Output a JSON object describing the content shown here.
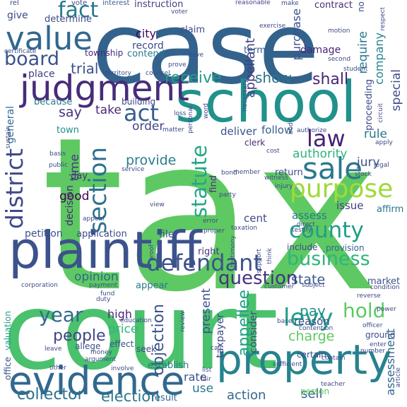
{
  "cloud": {
    "words": [
      {
        "text": "tax",
        "color": "#5ec962"
      },
      {
        "text": "court",
        "color": "#4ac16d"
      },
      {
        "text": "case",
        "color": "#33638d"
      },
      {
        "text": "school",
        "color": "#21918c"
      },
      {
        "text": "plaintiff",
        "color": "#3b528b"
      },
      {
        "text": "evidence",
        "color": "#31688e"
      },
      {
        "text": "property",
        "color": "#26828e"
      },
      {
        "text": "judgment",
        "color": "#472c7a"
      },
      {
        "text": "value",
        "color": "#31688e"
      },
      {
        "text": "sale",
        "color": "#2a788e"
      },
      {
        "text": "purpose",
        "color": "#a0da39"
      },
      {
        "text": "district",
        "color": "#3e4a89"
      },
      {
        "text": "county",
        "color": "#1f9e89"
      },
      {
        "text": "section",
        "color": "#2c728e"
      },
      {
        "text": "defendant",
        "color": "#3b528b"
      },
      {
        "text": "statute",
        "color": "#22a884"
      },
      {
        "text": "levy",
        "color": "#1f9e89"
      },
      {
        "text": "law",
        "color": "#482173"
      },
      {
        "text": "act",
        "color": "#355f8d"
      },
      {
        "text": "business",
        "color": "#2fb47c"
      },
      {
        "text": "fact",
        "color": "#2a788e"
      },
      {
        "text": "board",
        "color": "#3b528b"
      },
      {
        "text": "hold",
        "color": "#5ec962"
      },
      {
        "text": "year",
        "color": "#31688e"
      },
      {
        "text": "question",
        "color": "#46327e"
      },
      {
        "text": "people",
        "color": "#414487"
      },
      {
        "text": "appellee",
        "color": "#1fa088"
      },
      {
        "text": "objection",
        "color": "#3b528b"
      },
      {
        "text": "collector",
        "color": "#2c728e"
      },
      {
        "text": "election",
        "color": "#2a788e"
      },
      {
        "text": "action",
        "color": "#31688e"
      },
      {
        "text": "sell",
        "color": "#355f8d"
      },
      {
        "text": "pay",
        "color": "#21918c"
      },
      {
        "text": "state",
        "color": "#38588c"
      },
      {
        "text": "receive",
        "color": "#1f9e89"
      },
      {
        "text": "appellant",
        "color": "#433e85"
      },
      {
        "text": "show",
        "color": "#2c728e"
      },
      {
        "text": "shall",
        "color": "#482475"
      },
      {
        "text": "require",
        "color": "#2a788e"
      },
      {
        "text": "purchase",
        "color": "#3b528b"
      },
      {
        "text": "company",
        "color": "#26828e"
      },
      {
        "text": "special",
        "color": "#3e4a89"
      },
      {
        "text": "trial",
        "color": "#3b528b"
      },
      {
        "text": "city",
        "color": "#440154"
      },
      {
        "text": "record",
        "color": "#3e4a89"
      },
      {
        "text": "provide",
        "color": "#287d8e"
      },
      {
        "text": "time",
        "color": "#443983"
      },
      {
        "text": "order",
        "color": "#414487"
      },
      {
        "text": "say",
        "color": "#46327e"
      },
      {
        "text": "take",
        "color": "#482878"
      },
      {
        "text": "good",
        "color": "#440154"
      },
      {
        "text": "present",
        "color": "#3b528b"
      },
      {
        "text": "opinion",
        "color": "#31688e"
      },
      {
        "text": "charge",
        "color": "#5ec962"
      },
      {
        "text": "reason",
        "color": "#3e4a89"
      },
      {
        "text": "price",
        "color": "#2fb47c"
      },
      {
        "text": "high",
        "color": "#482878"
      },
      {
        "text": "rate",
        "color": "#3b528b"
      },
      {
        "text": "use",
        "color": "#2a788e"
      },
      {
        "text": "jury",
        "color": "#3b528b"
      },
      {
        "text": "rule",
        "color": "#2a788e"
      },
      {
        "text": "authority",
        "color": "#2fb47c"
      },
      {
        "text": "follow",
        "color": "#355f8d"
      },
      {
        "text": "deliver",
        "color": "#3b528b"
      },
      {
        "text": "find",
        "color": "#46327e"
      },
      {
        "text": "cent",
        "color": "#3e4a89"
      },
      {
        "text": "issue",
        "color": "#433e85"
      },
      {
        "text": "assess",
        "color": "#2a788e"
      },
      {
        "text": "taxpayer",
        "color": "#3e4a89"
      },
      {
        "text": "consider",
        "color": "#3e4a89"
      },
      {
        "text": "assessment",
        "color": "#31688e"
      },
      {
        "text": "general",
        "color": "#31688e"
      },
      {
        "text": "give",
        "color": "#3e4a89"
      },
      {
        "text": "damage",
        "color": "#482475"
      },
      {
        "text": "term",
        "color": "#355f8d"
      },
      {
        "text": "claim",
        "color": "#3e4a89"
      },
      {
        "text": "contend",
        "color": "#2a788e"
      },
      {
        "text": "place",
        "color": "#433e85"
      },
      {
        "text": "decision",
        "color": "#482475"
      },
      {
        "text": "petition",
        "color": "#3b528b"
      },
      {
        "text": "application",
        "color": "#3e4a89"
      },
      {
        "text": "file",
        "color": "#3b528b"
      },
      {
        "text": "right",
        "color": "#46327e"
      },
      {
        "text": "valuation",
        "color": "#1f9e89"
      },
      {
        "text": "office",
        "color": "#3b528b"
      },
      {
        "text": "market",
        "color": "#3b528b"
      },
      {
        "text": "ground",
        "color": "#3e4a89"
      },
      {
        "text": "affirm",
        "color": "#2a788e"
      },
      {
        "text": "town",
        "color": "#21918c"
      },
      {
        "text": "because",
        "color": "#2a788e"
      },
      {
        "text": "building",
        "color": "#3e4a89"
      },
      {
        "text": "township",
        "color": "#472c7a"
      },
      {
        "text": "determine",
        "color": "#3e4a89"
      },
      {
        "text": "instruction",
        "color": "#433e85"
      },
      {
        "text": "contract",
        "color": "#472c7a"
      },
      {
        "text": "proceeding",
        "color": "#3e4a89"
      },
      {
        "text": "allege",
        "color": "#3b528b"
      },
      {
        "text": "effect",
        "color": "#3b528b"
      },
      {
        "text": "seek",
        "color": "#3e4a89"
      },
      {
        "text": "establish",
        "color": "#2a788e"
      },
      {
        "text": "result",
        "color": "#31688e"
      },
      {
        "text": "person",
        "color": "#5ec962"
      },
      {
        "text": "certain",
        "color": "#3e4a89"
      },
      {
        "text": "return",
        "color": "#3e4a89"
      },
      {
        "text": "provision",
        "color": "#31688e"
      },
      {
        "text": "include",
        "color": "#3e4a89"
      },
      {
        "text": "appear",
        "color": "#2a788e"
      },
      {
        "text": "day",
        "color": "#46327e"
      },
      {
        "text": "clerk",
        "color": "#482878"
      },
      {
        "text": "second",
        "color": "#3e4a89"
      },
      {
        "text": "interest",
        "color": "#355f8d"
      },
      {
        "text": "vote",
        "color": "#3e4a89"
      },
      {
        "text": "reasonable",
        "color": "#433e85"
      },
      {
        "text": "make",
        "color": "#3e4a89"
      },
      {
        "text": "rel",
        "color": "#3e4a89"
      },
      {
        "text": "no",
        "color": "#3e4a89"
      },
      {
        "text": "respect",
        "color": "#3e4a89"
      },
      {
        "text": "exercise",
        "color": "#3e4a89"
      },
      {
        "text": "motion",
        "color": "#3e4a89"
      },
      {
        "text": "certificate",
        "color": "#3e4a89"
      },
      {
        "text": "have",
        "color": "#3e4a89"
      },
      {
        "text": "prove",
        "color": "#3e4a89"
      },
      {
        "text": "student",
        "color": "#3e4a89"
      },
      {
        "text": "territory",
        "color": "#3e4a89"
      },
      {
        "text": "counsel",
        "color": "#3e4a89"
      },
      {
        "text": "necessary",
        "color": "#3e4a89"
      },
      {
        "text": "circuit",
        "color": "#3e4a89"
      },
      {
        "text": "loss",
        "color": "#3e4a89"
      },
      {
        "text": "word",
        "color": "#3e4a89"
      },
      {
        "text": "sustain",
        "color": "#3e4a89"
      },
      {
        "text": "matter",
        "color": "#3e4a89"
      },
      {
        "text": "personal",
        "color": "#3e4a89"
      },
      {
        "text": "body",
        "color": "#3e4a89"
      },
      {
        "text": "authorize",
        "color": "#3e4a89"
      },
      {
        "text": "apply",
        "color": "#3e4a89"
      },
      {
        "text": "basis",
        "color": "#3e4a89"
      },
      {
        "text": "public",
        "color": "#3e4a89"
      },
      {
        "text": "service",
        "color": "#3e4a89"
      },
      {
        "text": "cost",
        "color": "#3e4a89"
      },
      {
        "text": "legal",
        "color": "#3e4a89"
      },
      {
        "text": "bond",
        "color": "#3e4a89"
      },
      {
        "text": "witness",
        "color": "#3e4a89"
      },
      {
        "text": "stock",
        "color": "#3e4a89"
      },
      {
        "text": "injury",
        "color": "#3e4a89"
      },
      {
        "text": "party",
        "color": "#3e4a89"
      },
      {
        "text": "testify",
        "color": "#3e4a89"
      },
      {
        "text": "appeal",
        "color": "#3e4a89"
      },
      {
        "text": "view",
        "color": "#3e4a89"
      },
      {
        "text": "error",
        "color": "#3e4a89"
      },
      {
        "text": "taxation",
        "color": "#3e4a89"
      },
      {
        "text": "direct",
        "color": "#3e4a89"
      },
      {
        "text": "proper",
        "color": "#3e4a89"
      },
      {
        "text": "testimony",
        "color": "#3e4a89"
      },
      {
        "text": "think",
        "color": "#3e4a89"
      },
      {
        "text": "support",
        "color": "#3e4a89"
      },
      {
        "text": "proof",
        "color": "#3e4a89"
      },
      {
        "text": "corporation",
        "color": "#3e4a89"
      },
      {
        "text": "payment",
        "color": "#3e4a89"
      },
      {
        "text": "fund",
        "color": "#3e4a89"
      },
      {
        "text": "duty",
        "color": "#3e4a89"
      },
      {
        "text": "customer",
        "color": "#3e4a89"
      },
      {
        "text": "subject",
        "color": "#3e4a89"
      },
      {
        "text": "reverse",
        "color": "#3e4a89"
      },
      {
        "text": "condition",
        "color": "#3e4a89"
      },
      {
        "text": "review",
        "color": "#3e4a89"
      },
      {
        "text": "base",
        "color": "#3e4a89"
      },
      {
        "text": "education",
        "color": "#3e4a89"
      },
      {
        "text": "power",
        "color": "#3e4a89"
      },
      {
        "text": "officer",
        "color": "#3e4a89"
      },
      {
        "text": "contention",
        "color": "#3e4a89"
      },
      {
        "text": "enter",
        "color": "#3e4a89"
      },
      {
        "text": "call",
        "color": "#3e4a89"
      },
      {
        "text": "leave",
        "color": "#3e4a89"
      },
      {
        "text": "number",
        "color": "#3e4a89"
      },
      {
        "text": "money",
        "color": "#3e4a89"
      },
      {
        "text": "argument",
        "color": "#3e4a89"
      },
      {
        "text": "involve",
        "color": "#3e4a89"
      },
      {
        "text": "sufficient",
        "color": "#3e4a89"
      },
      {
        "text": "contain",
        "color": "#3e4a89"
      },
      {
        "text": "article",
        "color": "#3e4a89"
      },
      {
        "text": "fair",
        "color": "#3e4a89"
      },
      {
        "text": "list",
        "color": "#3e4a89"
      },
      {
        "text": "teacher",
        "color": "#3e4a89"
      },
      {
        "text": "voter",
        "color": "#3e4a89"
      },
      {
        "text": "member",
        "color": "#3e4a89"
      },
      {
        "text": "other",
        "color": "#3e4a89"
      }
    ]
  }
}
